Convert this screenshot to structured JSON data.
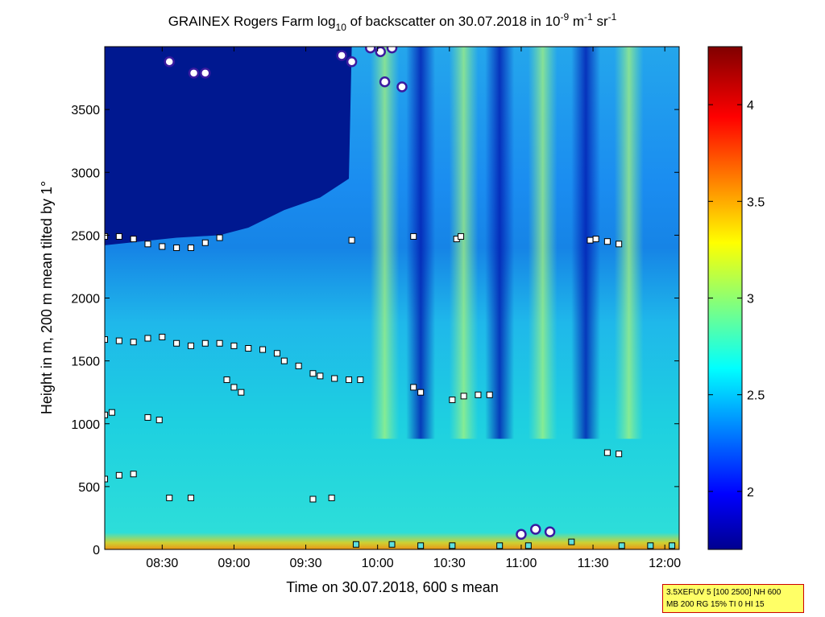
{
  "chart_data": {
    "type": "heatmap",
    "title": {
      "prefix": "GRAINEX Rogers Farm log",
      "sub": "10",
      "middle": " of backscatter on 30.07.2018 in 10",
      "sup1": "-9",
      "unit1": " m",
      "sup2": "-1",
      "unit2": " sr",
      "sup3": "-1"
    },
    "xlabel": "Time on 30.07.2018, 600 s mean",
    "ylabel": "Height in m, 200 m mean tilted by 1°",
    "x_ticks": [
      "08:30",
      "09:00",
      "09:30",
      "10:00",
      "10:30",
      "11:00",
      "11:30",
      "12:00"
    ],
    "x_tick_hours": [
      8.5,
      9.0,
      9.5,
      10.0,
      10.5,
      11.0,
      11.5,
      12.0
    ],
    "xlim_hours": [
      8.1,
      12.1
    ],
    "y_ticks": [
      0,
      500,
      1000,
      1500,
      2000,
      2500,
      3000,
      3500
    ],
    "ylim": [
      0,
      4000
    ],
    "colorbar": {
      "ticks": [
        "2",
        "2.5",
        "3",
        "3.5",
        "4"
      ],
      "tick_values": [
        2,
        2.5,
        3,
        3.5,
        4
      ],
      "range": [
        1.7,
        4.3
      ],
      "colormap": "jet"
    },
    "dark_top_region": {
      "comment_free_boundary": [
        [
          8.1,
          2420
        ],
        [
          8.6,
          2480
        ],
        [
          8.9,
          2500
        ],
        [
          9.1,
          2560
        ],
        [
          9.35,
          2700
        ],
        [
          9.6,
          2800
        ],
        [
          9.8,
          2950
        ],
        [
          9.82,
          4000
        ]
      ]
    },
    "clear_columns_hours": [
      10.05,
      10.3,
      10.6,
      10.85,
      11.15,
      11.45,
      11.75
    ],
    "layer_markers_white": [
      {
        "series": "upper layer",
        "points": [
          [
            8.1,
            2490
          ],
          [
            8.2,
            2490
          ],
          [
            8.3,
            2470
          ],
          [
            8.4,
            2430
          ],
          [
            8.5,
            2410
          ],
          [
            8.6,
            2400
          ],
          [
            8.7,
            2400
          ],
          [
            8.8,
            2440
          ],
          [
            8.9,
            2480
          ],
          [
            9.82,
            2460
          ],
          [
            10.25,
            2490
          ],
          [
            10.55,
            2470
          ],
          [
            10.58,
            2490
          ],
          [
            11.48,
            2460
          ],
          [
            11.52,
            2470
          ],
          [
            11.6,
            2450
          ],
          [
            11.68,
            2430
          ]
        ]
      },
      {
        "series": "mid layer",
        "points": [
          [
            8.1,
            1670
          ],
          [
            8.2,
            1660
          ],
          [
            8.3,
            1650
          ],
          [
            8.4,
            1680
          ],
          [
            8.5,
            1690
          ],
          [
            8.6,
            1640
          ],
          [
            8.7,
            1620
          ],
          [
            8.8,
            1640
          ],
          [
            8.9,
            1640
          ],
          [
            9.0,
            1620
          ],
          [
            9.1,
            1600
          ],
          [
            9.2,
            1590
          ],
          [
            9.3,
            1560
          ],
          [
            9.35,
            1500
          ],
          [
            9.45,
            1460
          ],
          [
            9.55,
            1400
          ],
          [
            9.6,
            1380
          ],
          [
            9.7,
            1360
          ],
          [
            9.8,
            1350
          ],
          [
            9.88,
            1350
          ]
        ]
      },
      {
        "series": "segments",
        "points": [
          [
            8.95,
            1350
          ],
          [
            9.0,
            1290
          ],
          [
            9.05,
            1250
          ],
          [
            10.25,
            1290
          ],
          [
            10.3,
            1250
          ],
          [
            10.52,
            1190
          ],
          [
            10.6,
            1220
          ],
          [
            10.7,
            1230
          ],
          [
            10.78,
            1230
          ],
          [
            8.1,
            1070
          ],
          [
            8.15,
            1090
          ],
          [
            8.4,
            1050
          ],
          [
            8.48,
            1030
          ],
          [
            8.1,
            560
          ],
          [
            8.2,
            590
          ],
          [
            8.3,
            600
          ],
          [
            8.55,
            410
          ],
          [
            8.7,
            410
          ],
          [
            9.55,
            400
          ],
          [
            9.68,
            410
          ],
          [
            11.6,
            770
          ],
          [
            11.68,
            760
          ]
        ]
      }
    ],
    "surface_markers": [
      {
        "series": "ground layer",
        "points": [
          [
            9.85,
            40
          ],
          [
            10.1,
            40
          ],
          [
            10.3,
            30
          ],
          [
            10.52,
            30
          ],
          [
            10.85,
            30
          ],
          [
            11.05,
            30
          ],
          [
            11.35,
            60
          ],
          [
            11.7,
            30
          ],
          [
            11.9,
            30
          ],
          [
            12.05,
            30
          ]
        ]
      }
    ],
    "strong_echo_circles": [
      [
        8.55,
        3880
      ],
      [
        8.72,
        3790
      ],
      [
        8.8,
        3790
      ],
      [
        9.75,
        3930
      ],
      [
        9.82,
        3880
      ],
      [
        9.95,
        3990
      ],
      [
        10.02,
        3960
      ],
      [
        10.05,
        3720
      ],
      [
        10.1,
        3990
      ],
      [
        10.17,
        3680
      ],
      [
        11.0,
        120
      ],
      [
        11.1,
        160
      ],
      [
        11.2,
        140
      ]
    ]
  },
  "info_box": {
    "line1": "3.5XEFUV 5 [100 2500] NH 600",
    "line2": "MB 200 RG 15% TI 0 HI 15"
  }
}
